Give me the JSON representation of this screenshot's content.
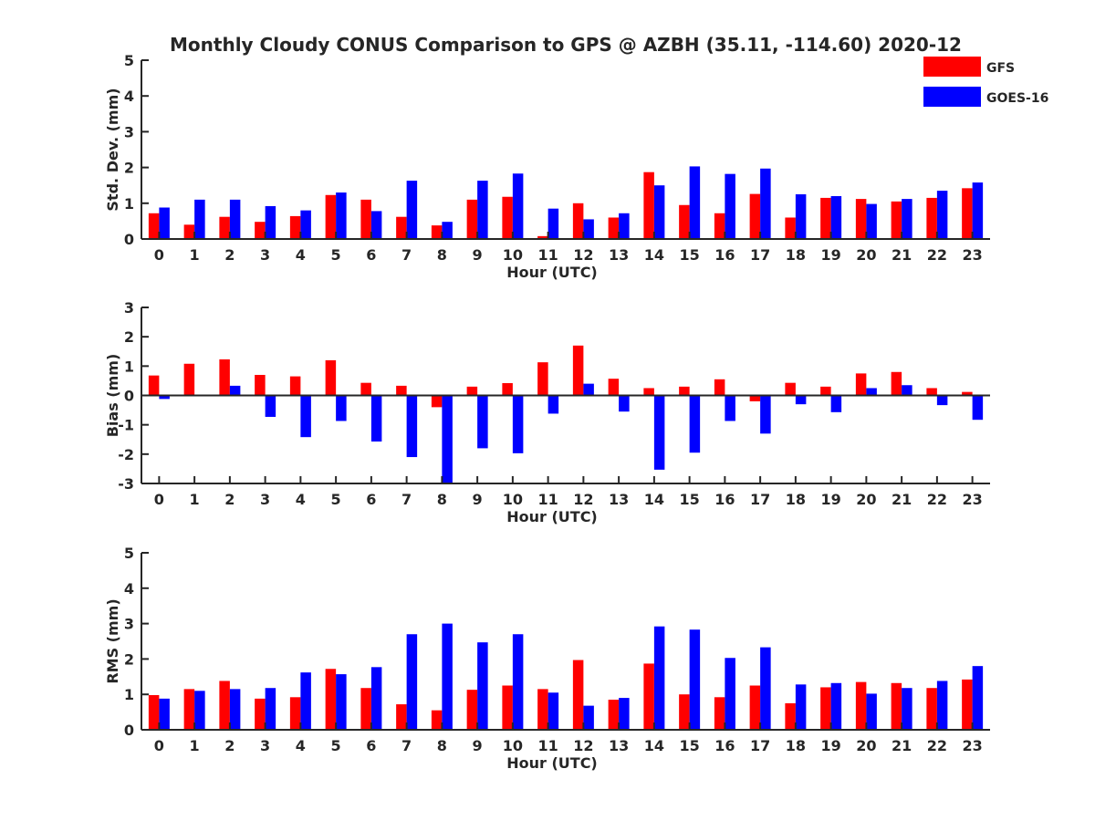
{
  "chart_data": {
    "title": "Monthly Cloudy CONUS Comparison to GPS @ AZBH (35.11, -114.60) 2020-12",
    "legend": {
      "placement": "top-right",
      "entries": [
        {
          "name": "GFS",
          "color": "#ff0000"
        },
        {
          "name": "GOES-16",
          "color": "#0000ff"
        }
      ]
    },
    "panels": [
      {
        "type": "bar",
        "xlabel": "Hour (UTC)",
        "ylabel": "Std. Dev. (mm)",
        "ylim": [
          0,
          5
        ],
        "yticks": [
          0,
          1,
          2,
          3,
          4,
          5
        ],
        "categories": [
          "0",
          "1",
          "2",
          "3",
          "4",
          "5",
          "6",
          "7",
          "8",
          "9",
          "10",
          "11",
          "12",
          "13",
          "14",
          "15",
          "16",
          "17",
          "18",
          "19",
          "20",
          "21",
          "22",
          "23"
        ],
        "series": [
          {
            "name": "GFS",
            "color": "#ff0000",
            "values": [
              0.72,
              0.4,
              0.62,
              0.48,
              0.64,
              1.23,
              1.1,
              0.62,
              0.38,
              1.1,
              1.18,
              0.08,
              1.0,
              0.6,
              1.87,
              0.95,
              0.72,
              1.26,
              0.6,
              1.15,
              1.12,
              1.05,
              1.15,
              1.42
            ]
          },
          {
            "name": "GOES-16",
            "color": "#0000ff",
            "values": [
              0.88,
              1.1,
              1.1,
              0.92,
              0.8,
              1.3,
              0.78,
              1.63,
              0.48,
              1.63,
              1.83,
              0.85,
              0.55,
              0.72,
              1.5,
              2.03,
              1.82,
              1.97,
              1.25,
              1.2,
              0.98,
              1.12,
              1.35,
              1.58
            ]
          }
        ]
      },
      {
        "type": "bar",
        "xlabel": "Hour (UTC)",
        "ylabel": "Bias (mm)",
        "ylim": [
          -3,
          3
        ],
        "yticks": [
          -3,
          -2,
          -1,
          0,
          1,
          2,
          3
        ],
        "categories": [
          "0",
          "1",
          "2",
          "3",
          "4",
          "5",
          "6",
          "7",
          "8",
          "9",
          "10",
          "11",
          "12",
          "13",
          "14",
          "15",
          "16",
          "17",
          "18",
          "19",
          "20",
          "21",
          "22",
          "23"
        ],
        "series": [
          {
            "name": "GFS",
            "color": "#ff0000",
            "values": [
              0.68,
              1.08,
              1.23,
              0.7,
              0.65,
              1.2,
              0.43,
              0.33,
              -0.4,
              0.3,
              0.42,
              1.13,
              1.7,
              0.57,
              0.25,
              0.3,
              0.55,
              -0.2,
              0.43,
              0.3,
              0.75,
              0.8,
              0.25,
              0.12
            ]
          },
          {
            "name": "GOES-16",
            "color": "#0000ff",
            "values": [
              -0.12,
              0.0,
              0.33,
              -0.73,
              -1.42,
              -0.87,
              -1.57,
              -2.1,
              -3.0,
              -1.8,
              -1.97,
              -0.62,
              0.4,
              -0.55,
              -2.53,
              -1.95,
              -0.87,
              -1.3,
              -0.3,
              -0.57,
              0.25,
              0.35,
              -0.33,
              -0.83
            ]
          }
        ]
      },
      {
        "type": "bar",
        "xlabel": "Hour (UTC)",
        "ylabel": "RMS (mm)",
        "ylim": [
          0,
          5
        ],
        "yticks": [
          0,
          1,
          2,
          3,
          4,
          5
        ],
        "categories": [
          "0",
          "1",
          "2",
          "3",
          "4",
          "5",
          "6",
          "7",
          "8",
          "9",
          "10",
          "11",
          "12",
          "13",
          "14",
          "15",
          "16",
          "17",
          "18",
          "19",
          "20",
          "21",
          "22",
          "23"
        ],
        "series": [
          {
            "name": "GFS",
            "color": "#ff0000",
            "values": [
              0.98,
              1.15,
              1.38,
              0.88,
              0.92,
              1.72,
              1.18,
              0.72,
              0.55,
              1.13,
              1.25,
              1.15,
              1.97,
              0.85,
              1.87,
              1.0,
              0.92,
              1.25,
              0.75,
              1.2,
              1.35,
              1.32,
              1.18,
              1.42
            ]
          },
          {
            "name": "GOES-16",
            "color": "#0000ff",
            "values": [
              0.88,
              1.1,
              1.15,
              1.18,
              1.62,
              1.57,
              1.77,
              2.7,
              3.0,
              2.47,
              2.7,
              1.05,
              0.68,
              0.9,
              2.92,
              2.83,
              2.03,
              2.33,
              1.28,
              1.32,
              1.02,
              1.18,
              1.38,
              1.8
            ]
          }
        ]
      }
    ]
  }
}
